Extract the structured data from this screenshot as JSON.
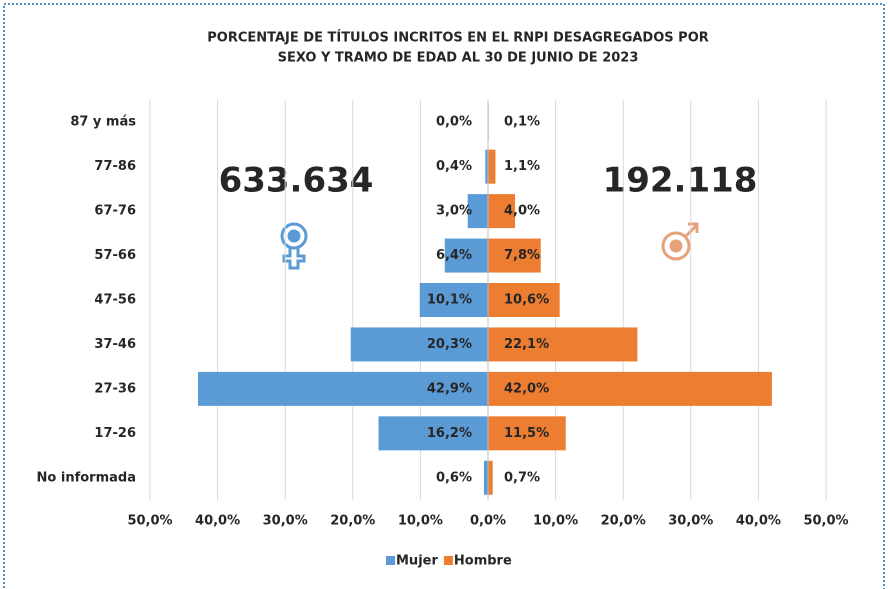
{
  "chart_data": {
    "type": "pyramid",
    "title": [
      "PORCENTAJE DE TÍTULOS INCRITOS EN EL RNPI DESAGREGADOS POR",
      "SEXO Y TRAMO DE EDAD AL 30 DE JUNIO DE 2023"
    ],
    "annotations": [
      "633.634",
      "192.118"
    ],
    "categories": [
      "87 y más",
      "77-86",
      "67-76",
      "57-66",
      "47-56",
      "37-46",
      "27-36",
      "17-26",
      "No informada"
    ],
    "series": [
      {
        "name": "Mujer",
        "color": "#5b9bd5",
        "side": "left",
        "values": [
          0.0,
          0.4,
          3.0,
          6.4,
          10.1,
          20.3,
          42.9,
          16.2,
          0.6
        ],
        "value_labels": [
          "0,0%",
          "0,4%",
          "3,0%",
          "6,4%",
          "10,1%",
          "20,3%",
          "42,9%",
          "16,2%",
          "0,6%"
        ]
      },
      {
        "name": "Hombre",
        "color": "#ed7d31",
        "side": "right",
        "values": [
          0.1,
          1.1,
          4.0,
          7.8,
          10.6,
          22.1,
          42.0,
          11.5,
          0.7
        ],
        "value_labels": [
          "0,1%",
          "1,1%",
          "4,0%",
          "7,8%",
          "10,6%",
          "22,1%",
          "42,0%",
          "11,5%",
          "0,7%"
        ]
      }
    ],
    "xlim": [
      -50,
      50
    ],
    "xticks": [
      {
        "value": -50,
        "label": "50,0%"
      },
      {
        "value": -40,
        "label": "40,0%"
      },
      {
        "value": -30,
        "label": "30,0%"
      },
      {
        "value": -20,
        "label": "20,0%"
      },
      {
        "value": -10,
        "label": "10,0%"
      },
      {
        "value": 0,
        "label": "0,0%"
      },
      {
        "value": 10,
        "label": "10,0%"
      },
      {
        "value": 20,
        "label": "20,0%"
      },
      {
        "value": 30,
        "label": "30,0%"
      },
      {
        "value": 40,
        "label": "40,0%"
      },
      {
        "value": 50,
        "label": "50,0%"
      }
    ],
    "grid": true,
    "legend": "bottom"
  }
}
